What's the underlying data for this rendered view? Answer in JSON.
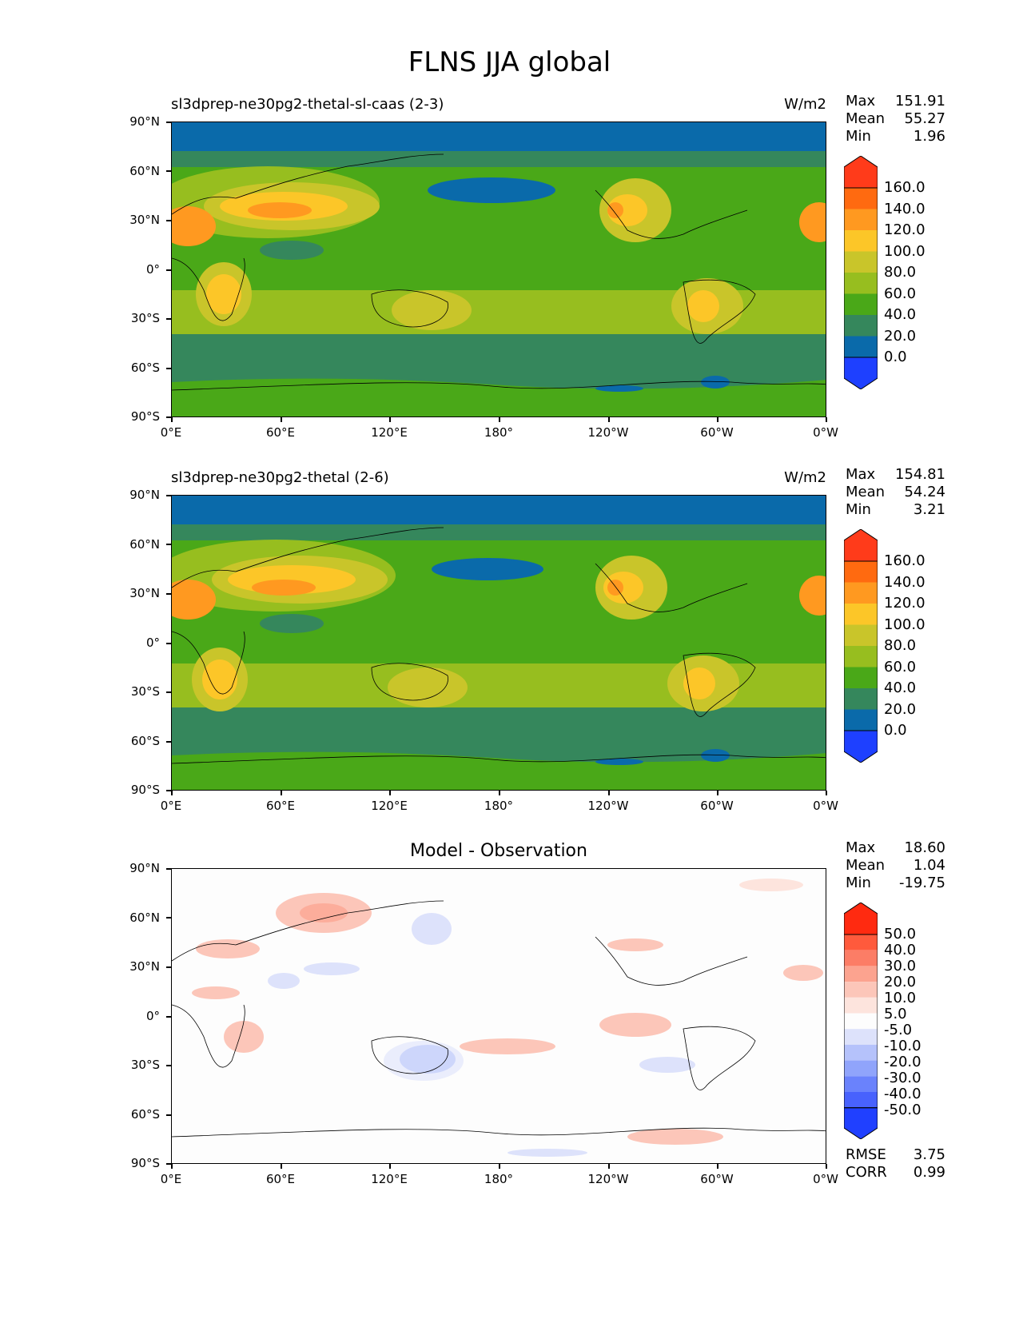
{
  "figure_title": "FLNS JJA global",
  "panels": [
    {
      "label": "sl3dprep-ne30pg2-thetal-sl-caas (2-3)",
      "units": "W/m2",
      "stats": [
        [
          "Max",
          "151.91"
        ],
        [
          "Mean",
          "55.27"
        ],
        [
          "Min",
          "1.96"
        ]
      ],
      "colorbar_labels": [
        "160.0",
        "140.0",
        "120.0",
        "100.0",
        "80.0",
        "60.0",
        "40.0",
        "20.0",
        "0.0"
      ],
      "colorbar_colors": [
        "#ff3b1a",
        "#ff6a10",
        "#ff9920",
        "#fcc628",
        "#c9c52a",
        "#97be1f",
        "#4aa818",
        "#35875c",
        "#0a6aaa",
        "#1e40ff"
      ]
    },
    {
      "label": "sl3dprep-ne30pg2-thetal (2-6)",
      "units": "W/m2",
      "stats": [
        [
          "Max",
          "154.81"
        ],
        [
          "Mean",
          "54.24"
        ],
        [
          "Min",
          "3.21"
        ]
      ],
      "colorbar_labels": [
        "160.0",
        "140.0",
        "120.0",
        "100.0",
        "80.0",
        "60.0",
        "40.0",
        "20.0",
        "0.0"
      ],
      "colorbar_colors": [
        "#ff3b1a",
        "#ff6a10",
        "#ff9920",
        "#fcc628",
        "#c9c52a",
        "#97be1f",
        "#4aa818",
        "#35875c",
        "#0a6aaa",
        "#1e40ff"
      ]
    },
    {
      "label": "Model - Observation",
      "stats": [
        [
          "Max",
          "18.60"
        ],
        [
          "Mean",
          "1.04"
        ],
        [
          "Min",
          "-19.75"
        ]
      ],
      "colorbar_labels": [
        "50.0",
        "40.0",
        "30.0",
        "20.0",
        "10.0",
        "5.0",
        "-5.0",
        "-10.0",
        "-20.0",
        "-30.0",
        "-40.0",
        "-50.0"
      ],
      "colorbar_colors": [
        "#ff2a10",
        "#ff5a3c",
        "#fc7d66",
        "#fca38f",
        "#fcc6b9",
        "#fde4dd",
        "#fdfdfd",
        "#dde2fb",
        "#b5c2fb",
        "#90a4fb",
        "#6a82fc",
        "#4862fd",
        "#2040ff"
      ],
      "metrics": [
        [
          "RMSE",
          "3.75"
        ],
        [
          "CORR",
          "0.99"
        ]
      ]
    }
  ],
  "lat_ticks": [
    "90°N",
    "60°N",
    "30°N",
    "0°",
    "30°S",
    "60°S",
    "90°S"
  ],
  "lon_ticks": [
    "0°E",
    "60°E",
    "120°E",
    "180°",
    "120°W",
    "60°W",
    "0°W"
  ]
}
